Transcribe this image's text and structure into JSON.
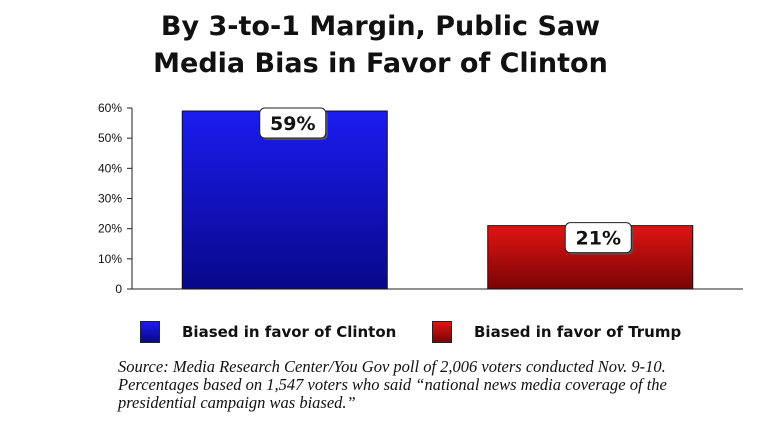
{
  "title_line1": "By 3-to-1 Margin, Public Saw",
  "title_line2": "Media Bias in Favor of Clinton",
  "chart_data": {
    "type": "bar",
    "title": "By 3-to-1 Margin, Public Saw Media Bias in Favor of Clinton",
    "categories": [
      "Biased in favor of Clinton",
      "Biased in favor of Trump"
    ],
    "values": [
      59,
      21
    ],
    "data_labels": [
      "59%",
      "21%"
    ],
    "colors": [
      "#1010d0",
      "#c81010"
    ],
    "ylim": [
      0,
      60
    ],
    "yticks": [
      0,
      10,
      20,
      30,
      40,
      50,
      60
    ],
    "ytick_labels": [
      "0",
      "10%",
      "20%",
      "30%",
      "40%",
      "50%",
      "60%"
    ],
    "xlabel": "",
    "ylabel": "",
    "grid": false,
    "legend_position": "bottom"
  },
  "legend": [
    {
      "label": "Biased in favor of Clinton",
      "color": "#1010d0"
    },
    {
      "label": "Biased in favor of Trump",
      "color": "#c81010"
    }
  ],
  "source_lines": [
    "Source: Media Research Center/You Gov poll of 2,006 voters conducted Nov. 9-10.",
    "Percentages based on 1,547 voters who said “national news media coverage of the",
    "presidential campaign was biased.”"
  ]
}
